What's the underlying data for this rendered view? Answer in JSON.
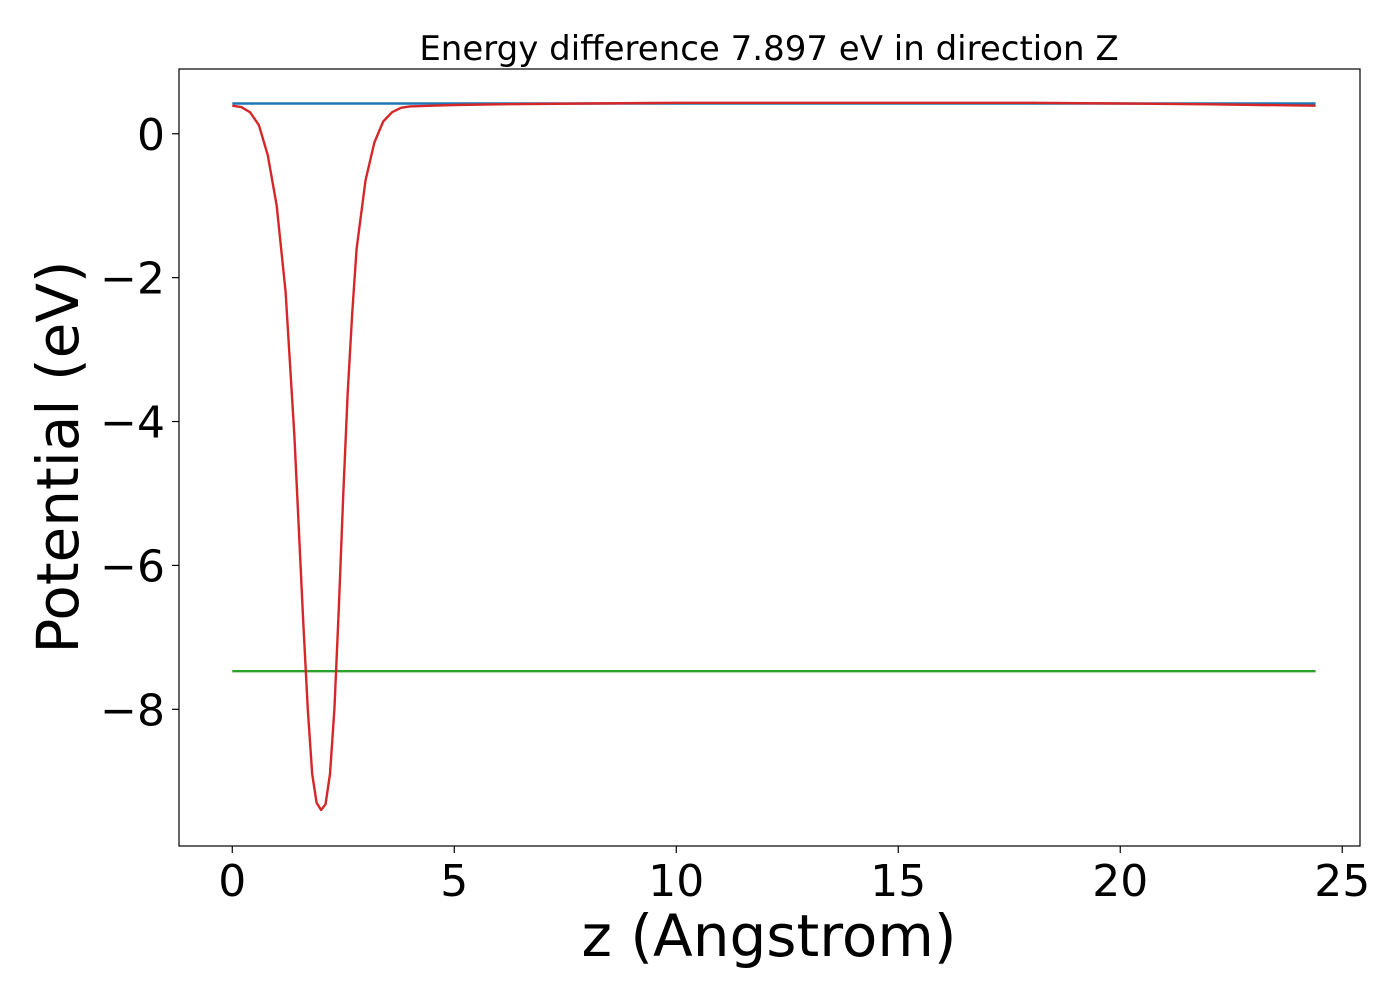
{
  "chart_data": {
    "type": "line",
    "title": "Energy difference 7.897 eV in direction Z",
    "xlabel": "z (Angstrom)",
    "ylabel": "Potential (eV)",
    "xlim": [
      -1.2,
      25.4
    ],
    "ylim": [
      -9.9,
      0.9
    ],
    "xticks": [
      0,
      5,
      10,
      15,
      20,
      25
    ],
    "xtick_labels": [
      "0",
      "5",
      "10",
      "15",
      "20",
      "25"
    ],
    "yticks": [
      0,
      -2,
      -4,
      -6,
      -8
    ],
    "ytick_labels": [
      "0",
      "−2",
      "−4",
      "−6",
      "−8"
    ],
    "grid": false,
    "series": [
      {
        "color": "#1f77b4",
        "x": [
          0,
          24.4
        ],
        "y": [
          0.42,
          0.42
        ]
      },
      {
        "color": "#2ca02c",
        "x": [
          0,
          24.4
        ],
        "y": [
          -7.47,
          -7.47
        ]
      },
      {
        "color": "#d62728",
        "x": [
          0,
          0.2,
          0.4,
          0.6,
          0.8,
          1.0,
          1.2,
          1.4,
          1.6,
          1.7,
          1.8,
          1.9,
          2.0,
          2.1,
          2.2,
          2.3,
          2.4,
          2.5,
          2.6,
          2.7,
          2.8,
          3.0,
          3.2,
          3.4,
          3.6,
          3.8,
          4.0,
          4.5,
          5,
          6,
          8,
          10,
          12,
          15,
          18,
          20,
          22,
          24.4
        ],
        "y": [
          0.39,
          0.37,
          0.3,
          0.12,
          -0.3,
          -1.0,
          -2.2,
          -4.2,
          -6.8,
          -8.0,
          -8.9,
          -9.3,
          -9.4,
          -9.32,
          -8.9,
          -8.0,
          -6.6,
          -5.0,
          -3.6,
          -2.5,
          -1.6,
          -0.65,
          -0.12,
          0.17,
          0.3,
          0.36,
          0.38,
          0.39,
          0.4,
          0.41,
          0.42,
          0.43,
          0.43,
          0.43,
          0.43,
          0.42,
          0.41,
          0.39
        ]
      }
    ]
  }
}
